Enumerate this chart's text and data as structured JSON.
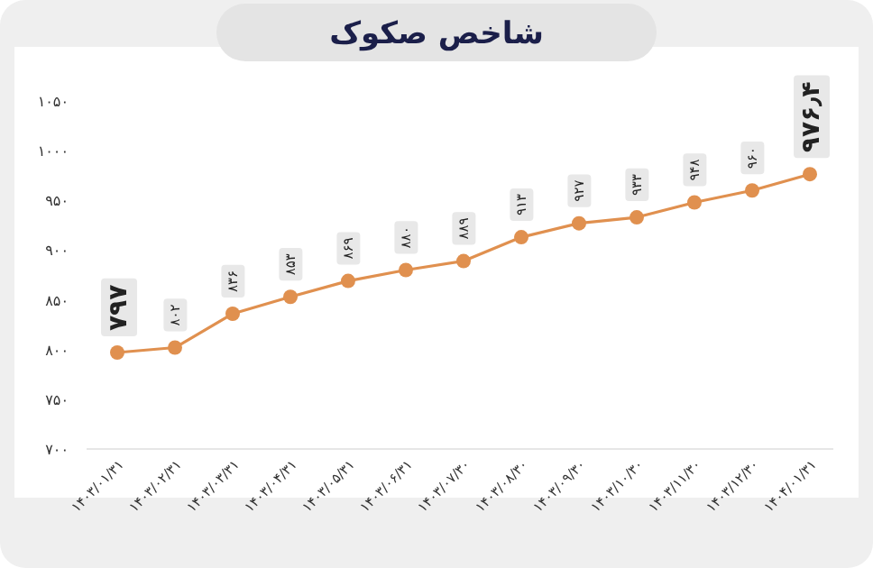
{
  "chart_data": {
    "type": "line",
    "title": "شاخص صکوک",
    "categories": [
      "۱۴۰۳/۰۱/۳۱",
      "۱۴۰۳/۰۲/۳۱",
      "۱۴۰۳/۰۳/۳۱",
      "۱۴۰۳/۰۴/۳۱",
      "۱۴۰۳/۰۵/۳۱",
      "۱۴۰۳/۰۶/۳۱",
      "۱۴۰۳/۰۷/۳۰",
      "۱۴۰۳/۰۸/۳۰",
      "۱۴۰۳/۰۹/۳۰",
      "۱۴۰۳/۱۰/۳۰",
      "۱۴۰۳/۱۱/۳۰",
      "۱۴۰۳/۱۲/۳۰",
      "۱۴۰۴/۰۱/۳۱"
    ],
    "values": [
      797,
      802,
      836,
      853,
      869,
      880,
      889,
      913,
      927,
      933,
      948,
      960,
      976.4
    ],
    "value_labels": [
      "۷۹۷",
      "۸۰۲",
      "۸۳۶",
      "۸۵۳",
      "۸۶۹",
      "۸۸۰",
      "۸۸۹",
      "۹۱۳",
      "۹۲۷",
      "۹۳۳",
      "۹۴۸",
      "۹۶۰",
      "۹۷۶٫۴"
    ],
    "color": "#e0904f",
    "marker": "circle",
    "ylim": [
      700,
      1050
    ],
    "yticks": [
      {
        "value": 700,
        "label": "۷۰۰"
      },
      {
        "value": 750,
        "label": "۷۵۰"
      },
      {
        "value": 800,
        "label": "۸۰۰"
      },
      {
        "value": 850,
        "label": "۸۵۰"
      },
      {
        "value": 900,
        "label": "۹۰۰"
      },
      {
        "value": 950,
        "label": "۹۵۰"
      },
      {
        "value": 1000,
        "label": "۱۰۰۰"
      },
      {
        "value": 1050,
        "label": "۱۰۵۰"
      }
    ]
  }
}
